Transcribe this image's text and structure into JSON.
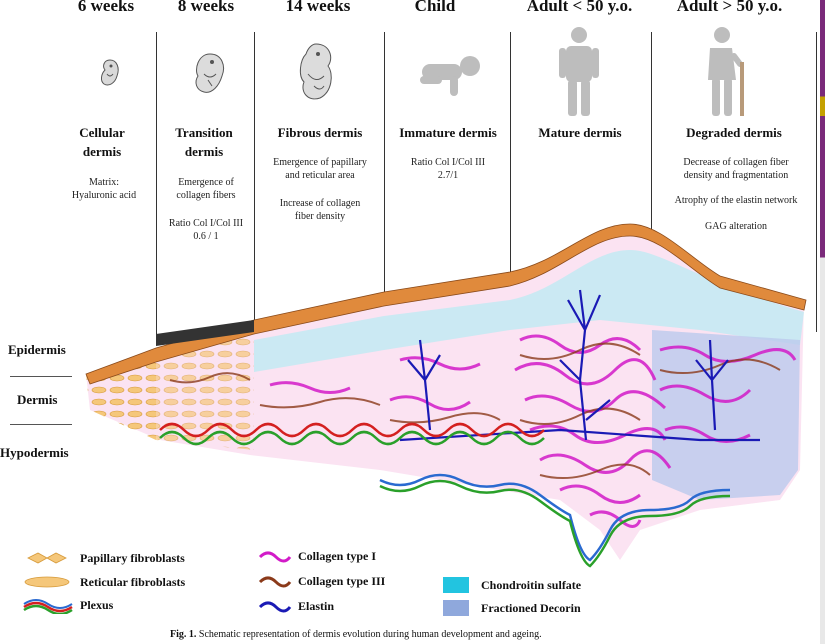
{
  "stages": [
    "6 weeks",
    "8 weeks",
    "14 weeks",
    "Child",
    "Adult < 50 y.o.",
    "Adult > 50 y.o."
  ],
  "dermis_types": [
    {
      "line1": "Cellular",
      "line2": "dermis"
    },
    {
      "line1": "Transition",
      "line2": "dermis"
    },
    {
      "line1": "Fibrous dermis",
      "line2": ""
    },
    {
      "line1": "Immature dermis",
      "line2": ""
    },
    {
      "line1": "Mature dermis",
      "line2": ""
    },
    {
      "line1": "Degraded dermis",
      "line2": ""
    }
  ],
  "notes": {
    "cellular": {
      "a": "Matrix:",
      "b": "Hyaluronic acid"
    },
    "transition": {
      "a": "Emergence of",
      "b": "collagen fibers",
      "c": "Ratio Col I/Col III",
      "d": "0.6 / 1"
    },
    "fibrous": {
      "a": "Emergence of papillary",
      "b": "and reticular area",
      "c": "Increase of collagen",
      "d": "fiber density"
    },
    "immature": {
      "a": "Ratio Col I/Col III",
      "b": "2.7/1"
    },
    "degraded": {
      "a": "Decrease of collagen fiber",
      "b": "density and fragmentation",
      "c": "Atrophy of the elastin network",
      "d": "GAG alteration"
    }
  },
  "layers": [
    "Epidermis",
    "Dermis",
    "Hypodermis"
  ],
  "legend": {
    "papillary": "Papillary fibroblasts",
    "reticular": "Reticular fibroblasts",
    "plexus": "Plexus",
    "col1": "Collagen type I",
    "col3": "Collagen type III",
    "elastin": "Elastin",
    "chondroitin": "Chondroitin sulfate",
    "decorin": "Fractioned Decorin"
  },
  "colors": {
    "collagen_I": "#d21bc8",
    "collagen_III": "#8b3a1a",
    "elastin": "#1a1ab5",
    "chondroitin": "#22c4e0",
    "decorin": "#8fa8dc",
    "fibroblast": "#f5c77a",
    "epidermis": "#e08a3c",
    "plexus_red": "#d42020",
    "plexus_green": "#2aa02a",
    "plexus_blue": "#2a6ad0"
  },
  "icons": [
    "embryo-6w-icon",
    "embryo-8w-icon",
    "fetus-14w-icon",
    "crawling-child-icon",
    "adult-person-icon",
    "elderly-person-icon"
  ],
  "caption": {
    "prefix": "Fig. 1.",
    "text": " Schematic representation of dermis evolution during human development and ageing."
  }
}
